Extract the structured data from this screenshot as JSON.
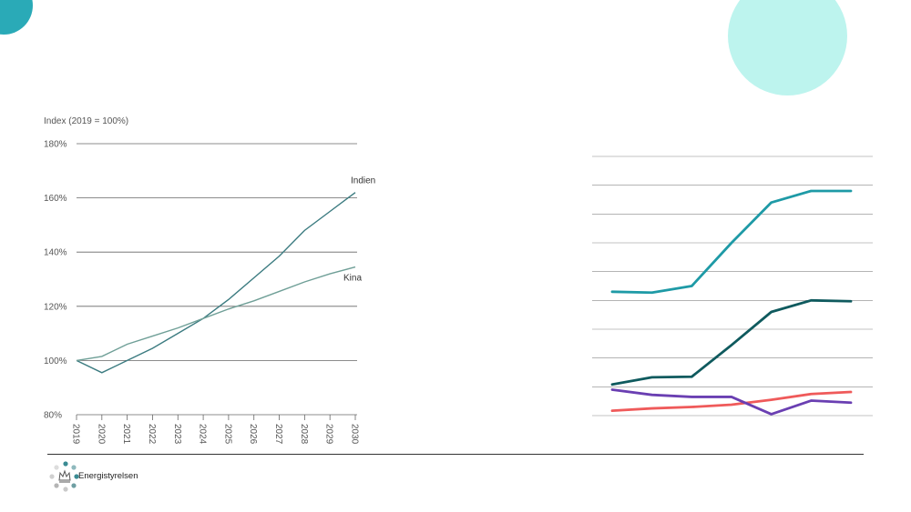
{
  "colors": {
    "circle_left": "#2aaab7",
    "circle_right": "#bdf4ee",
    "indien": "#3b7b80",
    "kina": "#6f9f97",
    "grid": "#666666"
  },
  "logo": {
    "text": "Energistyrelsen",
    "icon": "crown-dots-icon"
  },
  "chart_data": [
    {
      "type": "line",
      "title": "",
      "ylabel": "Index (2019 = 100%)",
      "x": [
        "2019",
        "2020",
        "2021",
        "2022",
        "2023",
        "2024",
        "2025",
        "2026",
        "2027",
        "2028",
        "2029",
        "2030"
      ],
      "y_ticks": [
        "80%",
        "100%",
        "120%",
        "140%",
        "160%",
        "180%"
      ],
      "ylim": [
        80,
        180
      ],
      "grid": true,
      "series": [
        {
          "name": "Indien",
          "values": [
            100,
            95.5,
            100,
            104.5,
            110,
            115.5,
            122.5,
            130.5,
            138.5,
            148,
            155,
            162
          ]
        },
        {
          "name": "Kina",
          "values": [
            100,
            101.5,
            106,
            109,
            112,
            115.5,
            119,
            122,
            125.5,
            129,
            132,
            134.5
          ]
        }
      ]
    },
    {
      "type": "line",
      "title": "",
      "grid": true,
      "ylim": [
        0,
        9
      ],
      "x_count": 7,
      "series": [
        {
          "color": "#1e9aa6",
          "values": [
            4.3,
            4.27,
            4.5,
            6.0,
            7.4,
            7.8,
            7.8
          ]
        },
        {
          "color": "#0f5a5e",
          "values": [
            1.08,
            1.33,
            1.35,
            2.45,
            3.6,
            4.0,
            3.97
          ]
        },
        {
          "color": "#ef5a5a",
          "values": [
            0.17,
            0.25,
            0.3,
            0.38,
            0.55,
            0.75,
            0.82
          ]
        },
        {
          "color": "#6a3fb2",
          "values": [
            0.9,
            0.72,
            0.65,
            0.65,
            0.05,
            0.52,
            0.45
          ]
        }
      ]
    }
  ]
}
